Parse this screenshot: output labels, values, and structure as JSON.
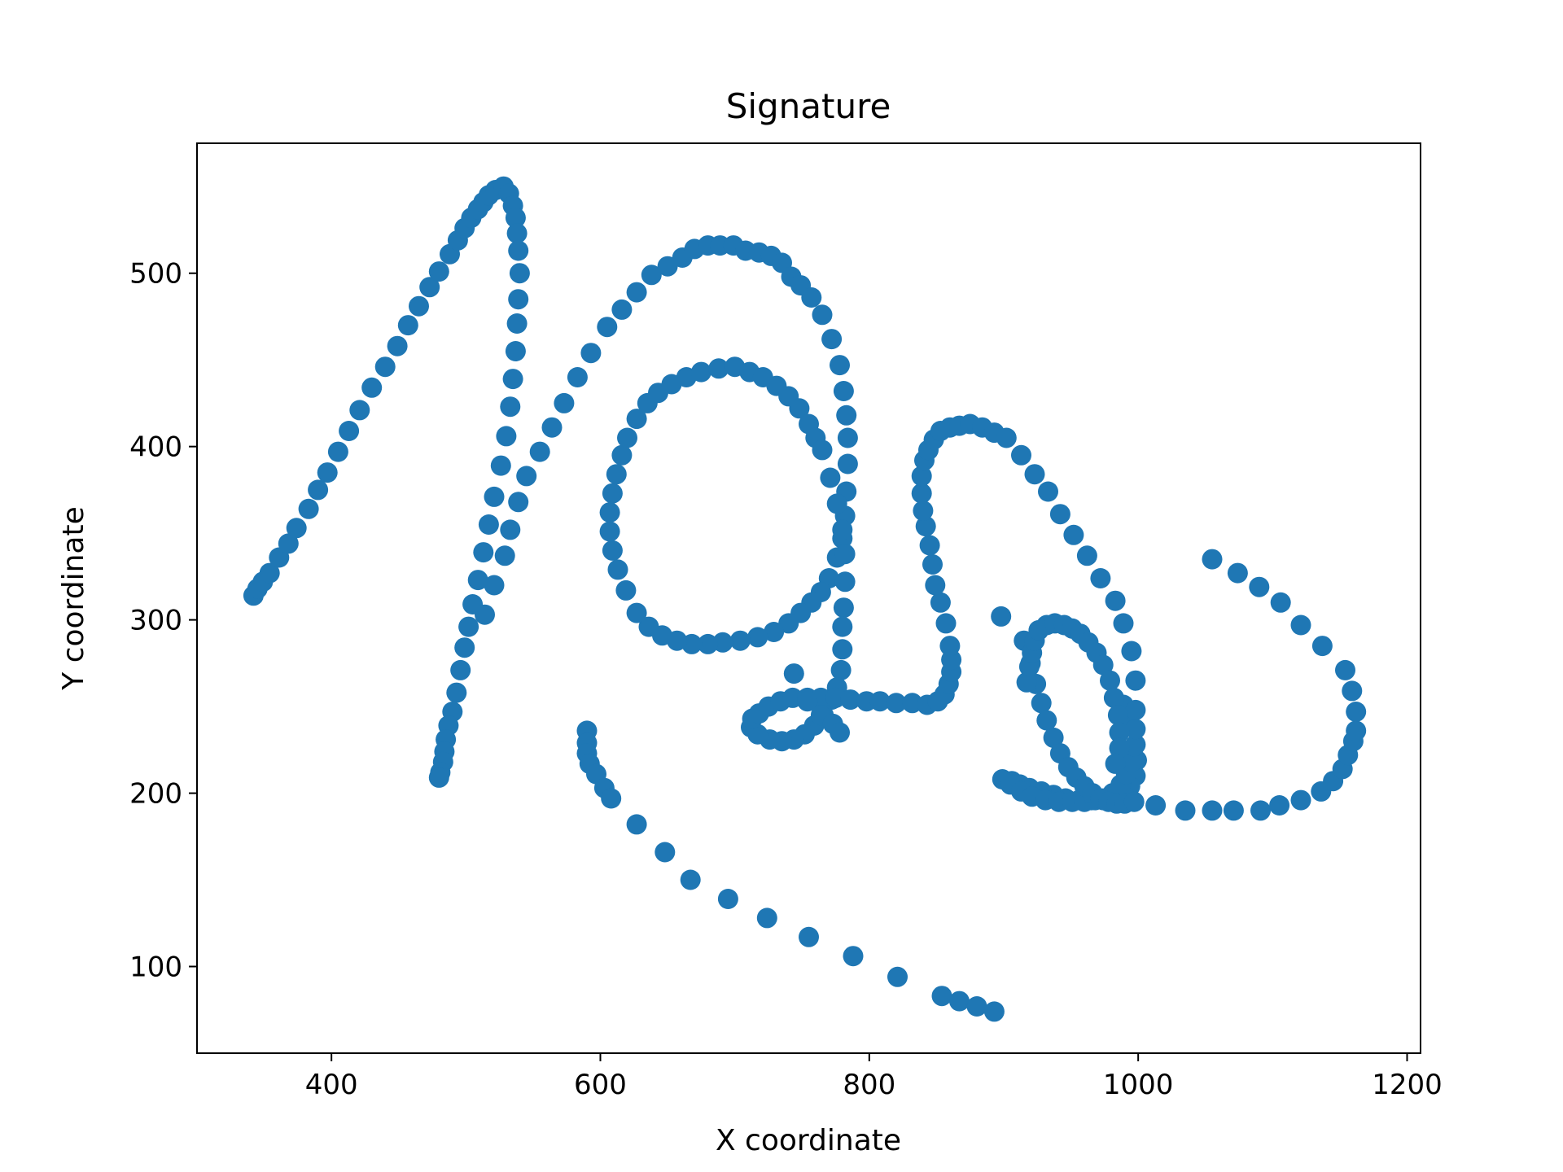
{
  "chart_data": {
    "type": "scatter",
    "title": "Signature",
    "xlabel": "X coordinate",
    "ylabel": "Y coordinate",
    "xlim": [
      300,
      1210
    ],
    "ylim": [
      50,
      575
    ],
    "xticks": [
      400,
      600,
      800,
      1000,
      1200
    ],
    "yticks": [
      100,
      200,
      300,
      400,
      500
    ],
    "grid": false,
    "legend": "none",
    "series": [
      {
        "color": "#1f77b4",
        "points": [
          [
            342,
            314
          ],
          [
            345,
            318
          ],
          [
            349,
            322
          ],
          [
            354,
            327
          ],
          [
            361,
            336
          ],
          [
            368,
            344
          ],
          [
            374,
            353
          ],
          [
            383,
            364
          ],
          [
            390,
            375
          ],
          [
            397,
            385
          ],
          [
            405,
            397
          ],
          [
            413,
            409
          ],
          [
            421,
            421
          ],
          [
            430,
            434
          ],
          [
            440,
            446
          ],
          [
            449,
            458
          ],
          [
            457,
            470
          ],
          [
            465,
            481
          ],
          [
            473,
            492
          ],
          [
            480,
            501
          ],
          [
            488,
            511
          ],
          [
            494,
            519
          ],
          [
            499,
            526
          ],
          [
            504,
            532
          ],
          [
            509,
            537
          ],
          [
            513,
            541
          ],
          [
            517,
            545
          ],
          [
            522,
            548
          ],
          [
            528,
            550
          ],
          [
            532,
            546
          ],
          [
            535,
            539
          ],
          [
            537,
            532
          ],
          [
            538,
            523
          ],
          [
            539,
            513
          ],
          [
            540,
            500
          ],
          [
            539,
            485
          ],
          [
            538,
            471
          ],
          [
            537,
            455
          ],
          [
            535,
            439
          ],
          [
            533,
            423
          ],
          [
            530,
            406
          ],
          [
            526,
            389
          ],
          [
            521,
            371
          ],
          [
            517,
            355
          ],
          [
            513,
            339
          ],
          [
            509,
            323
          ],
          [
            505,
            309
          ],
          [
            502,
            296
          ],
          [
            499,
            284
          ],
          [
            496,
            271
          ],
          [
            493,
            258
          ],
          [
            490,
            247
          ],
          [
            487,
            239
          ],
          [
            485,
            231
          ],
          [
            484,
            224
          ],
          [
            483,
            218
          ],
          [
            481,
            212
          ],
          [
            480,
            209
          ],
          [
            514,
            303
          ],
          [
            521,
            320
          ],
          [
            529,
            337
          ],
          [
            533,
            352
          ],
          [
            539,
            368
          ],
          [
            545,
            383
          ],
          [
            555,
            397
          ],
          [
            564,
            411
          ],
          [
            573,
            425
          ],
          [
            583,
            440
          ],
          [
            593,
            454
          ],
          [
            605,
            469
          ],
          [
            616,
            479
          ],
          [
            627,
            489
          ],
          [
            638,
            499
          ],
          [
            650,
            504
          ],
          [
            661,
            509
          ],
          [
            670,
            514
          ],
          [
            680,
            516
          ],
          [
            689,
            516
          ],
          [
            699,
            516
          ],
          [
            708,
            513
          ],
          [
            718,
            512
          ],
          [
            727,
            510
          ],
          [
            735,
            506
          ],
          [
            742,
            498
          ],
          [
            749,
            493
          ],
          [
            757,
            486
          ],
          [
            765,
            476
          ],
          [
            772,
            462
          ],
          [
            778,
            447
          ],
          [
            781,
            432
          ],
          [
            783,
            418
          ],
          [
            784,
            405
          ],
          [
            784,
            390
          ],
          [
            783,
            374
          ],
          [
            782,
            360
          ],
          [
            780,
            347
          ],
          [
            776,
            336
          ],
          [
            770,
            324
          ],
          [
            764,
            316
          ],
          [
            757,
            310
          ],
          [
            749,
            304
          ],
          [
            740,
            298
          ],
          [
            729,
            293
          ],
          [
            717,
            290
          ],
          [
            704,
            288
          ],
          [
            691,
            287
          ],
          [
            680,
            286
          ],
          [
            668,
            286
          ],
          [
            657,
            288
          ],
          [
            646,
            291
          ],
          [
            636,
            296
          ],
          [
            627,
            304
          ],
          [
            619,
            317
          ],
          [
            613,
            329
          ],
          [
            609,
            340
          ],
          [
            607,
            351
          ],
          [
            607,
            362
          ],
          [
            609,
            373
          ],
          [
            612,
            384
          ],
          [
            616,
            395
          ],
          [
            620,
            405
          ],
          [
            627,
            416
          ],
          [
            635,
            425
          ],
          [
            643,
            431
          ],
          [
            653,
            436
          ],
          [
            664,
            440
          ],
          [
            675,
            443
          ],
          [
            688,
            445
          ],
          [
            700,
            446
          ],
          [
            711,
            443
          ],
          [
            721,
            440
          ],
          [
            731,
            435
          ],
          [
            740,
            429
          ],
          [
            748,
            422
          ],
          [
            755,
            413
          ],
          [
            760,
            405
          ],
          [
            765,
            398
          ],
          [
            771,
            382
          ],
          [
            776,
            367
          ],
          [
            780,
            352
          ],
          [
            782,
            338
          ],
          [
            782,
            322
          ],
          [
            781,
            307
          ],
          [
            780,
            296
          ],
          [
            780,
            283
          ],
          [
            779,
            271
          ],
          [
            776,
            261
          ],
          [
            772,
            254
          ],
          [
            766,
            245
          ],
          [
            759,
            239
          ],
          [
            752,
            234
          ],
          [
            744,
            231
          ],
          [
            735,
            230
          ],
          [
            726,
            231
          ],
          [
            717,
            234
          ],
          [
            712,
            238
          ],
          [
            713,
            243
          ],
          [
            718,
            246
          ],
          [
            725,
            250
          ],
          [
            734,
            253
          ],
          [
            743,
            255
          ],
          [
            754,
            255
          ],
          [
            764,
            255
          ],
          [
            775,
            255
          ],
          [
            786,
            254
          ],
          [
            798,
            253
          ],
          [
            808,
            253
          ],
          [
            820,
            252
          ],
          [
            832,
            252
          ],
          [
            843,
            251
          ],
          [
            851,
            253
          ],
          [
            856,
            257
          ],
          [
            859,
            263
          ],
          [
            861,
            270
          ],
          [
            861,
            277
          ],
          [
            860,
            285
          ],
          [
            857,
            298
          ],
          [
            853,
            310
          ],
          [
            849,
            320
          ],
          [
            847,
            332
          ],
          [
            845,
            343
          ],
          [
            842,
            354
          ],
          [
            840,
            363
          ],
          [
            839,
            373
          ],
          [
            839,
            383
          ],
          [
            841,
            392
          ],
          [
            844,
            398
          ],
          [
            848,
            404
          ],
          [
            853,
            409
          ],
          [
            860,
            411
          ],
          [
            867,
            412
          ],
          [
            875,
            413
          ],
          [
            884,
            411
          ],
          [
            893,
            408
          ],
          [
            902,
            405
          ],
          [
            913,
            395
          ],
          [
            923,
            384
          ],
          [
            933,
            374
          ],
          [
            942,
            361
          ],
          [
            952,
            349
          ],
          [
            962,
            337
          ],
          [
            972,
            324
          ],
          [
            983,
            311
          ],
          [
            989,
            298
          ],
          [
            995,
            282
          ],
          [
            998,
            265
          ],
          [
            989,
            251
          ],
          [
            994,
            240
          ],
          [
            998,
            228
          ],
          [
            999,
            219
          ],
          [
            998,
            210
          ],
          [
            994,
            204
          ],
          [
            989,
            200
          ],
          [
            982,
            197
          ],
          [
            974,
            196
          ],
          [
            965,
            196
          ],
          [
            956,
            196
          ],
          [
            946,
            197
          ],
          [
            937,
            199
          ],
          [
            928,
            201
          ],
          [
            919,
            203
          ],
          [
            912,
            205
          ],
          [
            906,
            207
          ],
          [
            899,
            208
          ],
          [
            905,
            205
          ],
          [
            913,
            201
          ],
          [
            921,
            198
          ],
          [
            931,
            196
          ],
          [
            941,
            195
          ],
          [
            951,
            195
          ],
          [
            960,
            195
          ],
          [
            968,
            196
          ],
          [
            975,
            197
          ],
          [
            981,
            200
          ],
          [
            987,
            205
          ],
          [
            991,
            211
          ],
          [
            995,
            218
          ],
          [
            997,
            227
          ],
          [
            998,
            237
          ],
          [
            998,
            248
          ],
          [
            898,
            302
          ],
          [
            915,
            288
          ],
          [
            920,
            275
          ],
          [
            924,
            263
          ],
          [
            928,
            252
          ],
          [
            932,
            242
          ],
          [
            937,
            232
          ],
          [
            942,
            223
          ],
          [
            948,
            215
          ],
          [
            954,
            209
          ],
          [
            960,
            204
          ],
          [
            966,
            200
          ],
          [
            972,
            197
          ],
          [
            978,
            195
          ],
          [
            984,
            194
          ],
          [
            990,
            194
          ],
          [
            997,
            195
          ],
          [
            1013,
            193
          ],
          [
            1035,
            190
          ],
          [
            1055,
            190
          ],
          [
            1071,
            190
          ],
          [
            1091,
            190
          ],
          [
            1105,
            193
          ],
          [
            1121,
            196
          ],
          [
            1136,
            201
          ],
          [
            1145,
            207
          ],
          [
            1152,
            214
          ],
          [
            1156,
            222
          ],
          [
            1160,
            230
          ],
          [
            1162,
            236
          ],
          [
            1162,
            247
          ],
          [
            1159,
            259
          ],
          [
            1154,
            271
          ],
          [
            1137,
            285
          ],
          [
            1121,
            297
          ],
          [
            1106,
            310
          ],
          [
            1090,
            319
          ],
          [
            1074,
            327
          ],
          [
            1055,
            335
          ],
          [
            744,
            269
          ],
          [
            754,
            253
          ],
          [
            764,
            245
          ],
          [
            773,
            240
          ],
          [
            778,
            235
          ],
          [
            917,
            264
          ],
          [
            919,
            273
          ],
          [
            921,
            281
          ],
          [
            923,
            288
          ],
          [
            926,
            294
          ],
          [
            932,
            297
          ],
          [
            938,
            298
          ],
          [
            945,
            297
          ],
          [
            951,
            295
          ],
          [
            957,
            292
          ],
          [
            963,
            287
          ],
          [
            969,
            281
          ],
          [
            974,
            274
          ],
          [
            979,
            265
          ],
          [
            982,
            255
          ],
          [
            985,
            245
          ],
          [
            986,
            235
          ],
          [
            986,
            226
          ],
          [
            983,
            217
          ],
          [
            590,
            236
          ],
          [
            590,
            229
          ],
          [
            590,
            223
          ],
          [
            592,
            217
          ],
          [
            597,
            211
          ],
          [
            603,
            203
          ],
          [
            608,
            197
          ],
          [
            627,
            182
          ],
          [
            648,
            166
          ],
          [
            667,
            150
          ],
          [
            695,
            139
          ],
          [
            724,
            128
          ],
          [
            755,
            117
          ],
          [
            788,
            106
          ],
          [
            821,
            94
          ],
          [
            854,
            83
          ],
          [
            867,
            80
          ],
          [
            880,
            77
          ],
          [
            893,
            74
          ]
        ]
      }
    ]
  }
}
